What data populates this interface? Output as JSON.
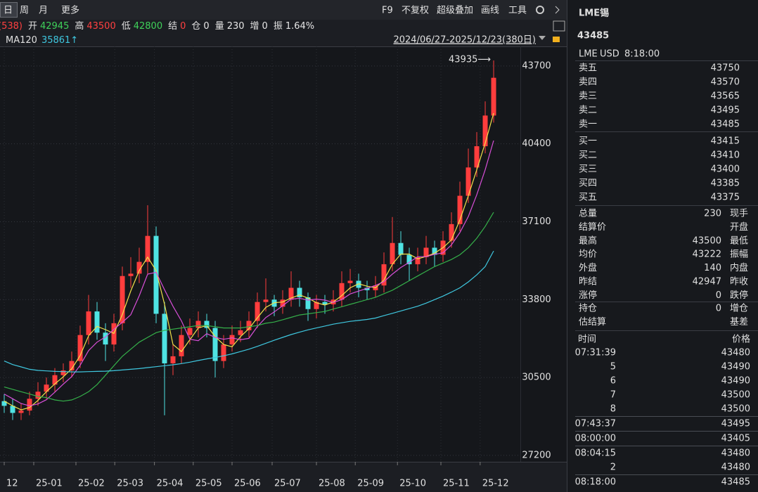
{
  "toolbar": {
    "periods": [
      "日",
      "周",
      "月",
      "更多"
    ],
    "tools": [
      "F9",
      "不复权",
      "超级叠加",
      "画线",
      "工具"
    ]
  },
  "quote_line": {
    "prefix": "(538)",
    "items": [
      {
        "label": "开",
        "value": "42945",
        "color": "#3fd15a"
      },
      {
        "label": "高",
        "value": "43500",
        "color": "#ff4040"
      },
      {
        "label": "低",
        "value": "42800",
        "color": "#3fd15a"
      },
      {
        "label": "结",
        "value": "0",
        "color": "#ff4040"
      },
      {
        "label": "仓",
        "value": "0",
        "color": "#e6e6e6"
      },
      {
        "label": "量",
        "value": "230",
        "color": "#e6e6e6"
      },
      {
        "label": "增",
        "value": "0",
        "color": "#e6e6e6"
      },
      {
        "label": "振",
        "value": "1.64%",
        "color": "#e6e6e6"
      }
    ]
  },
  "range": "2024/06/27-2025/12/23(380日)",
  "chart": {
    "type": "candlestick",
    "up_color": "#ff3d3d",
    "down_color": "#4fe3e3",
    "grid": true,
    "xlim": [
      -0.5,
      66.58
    ],
    "ylim": [
      26930,
      44530
    ],
    "yticks": [
      43700,
      40400,
      37100,
      33800,
      30500,
      27200
    ],
    "xticks": [
      {
        "value": 0,
        "label": "12"
      },
      {
        "value": 3.5,
        "label": "25-01"
      },
      {
        "value": 8.5,
        "label": "25-02"
      },
      {
        "value": 13.1,
        "label": "25-03"
      },
      {
        "value": 17.8,
        "label": "25-04"
      },
      {
        "value": 22.4,
        "label": "25-05"
      },
      {
        "value": 27,
        "label": "25-06"
      },
      {
        "value": 31.75,
        "label": "25-07"
      },
      {
        "value": 37,
        "label": "25-08"
      },
      {
        "value": 41.6,
        "label": "25-09"
      },
      {
        "value": 46.6,
        "label": "25-10"
      },
      {
        "value": 51.75,
        "label": "25-11"
      },
      {
        "value": 56.4,
        "label": "25-12"
      }
    ],
    "opens": [
      29500,
      29300,
      29000,
      29100,
      29600,
      29900,
      30200,
      30600,
      30800,
      31200,
      32300,
      33300,
      32400,
      31900,
      32800,
      34800,
      34900,
      35400,
      36500,
      33200,
      31100,
      31400,
      32300,
      32600,
      32900,
      32600,
      31200,
      31900,
      32300,
      32500,
      32900,
      33700,
      33800,
      33500,
      33800,
      34300,
      33900,
      33400,
      33700,
      33600,
      33800,
      34500,
      34600,
      34300,
      34200,
      34400,
      35300,
      36200,
      35700,
      35300,
      35600,
      36000,
      35700,
      36300,
      37000,
      38200,
      39400,
      40300,
      41600
    ],
    "highs": [
      29800,
      29600,
      29400,
      29900,
      30300,
      30500,
      30900,
      31100,
      31600,
      32700,
      34000,
      33700,
      32800,
      33200,
      35200,
      35600,
      36000,
      37800,
      36900,
      33700,
      31900,
      32700,
      33000,
      33300,
      33200,
      32900,
      32300,
      32700,
      32900,
      33300,
      34100,
      34700,
      34000,
      34200,
      35000,
      34600,
      34100,
      34000,
      34000,
      34200,
      35000,
      35100,
      34900,
      34600,
      34800,
      35800,
      37300,
      36700,
      36000,
      36000,
      36500,
      36300,
      36700,
      37500,
      38800,
      40200,
      40900,
      42200,
      43935
    ],
    "lows": [
      29000,
      28700,
      28700,
      28900,
      29300,
      29600,
      29900,
      30300,
      30500,
      30900,
      31900,
      32100,
      31200,
      31600,
      32500,
      34300,
      34500,
      34900,
      32800,
      28900,
      30600,
      31100,
      31900,
      32200,
      32200,
      30500,
      30900,
      31600,
      32000,
      32200,
      32600,
      33300,
      33100,
      33200,
      33500,
      33500,
      32900,
      33000,
      33200,
      33300,
      33500,
      34100,
      33900,
      33800,
      33900,
      34100,
      35000,
      35300,
      34600,
      35000,
      35300,
      35200,
      35400,
      36000,
      36700,
      37900,
      39000,
      40000,
      41300
    ],
    "closes": [
      29300,
      29000,
      29100,
      29600,
      29900,
      30200,
      30600,
      30800,
      31200,
      32300,
      33300,
      32400,
      31900,
      32800,
      34800,
      34900,
      35400,
      36500,
      33200,
      31100,
      31400,
      32300,
      32600,
      32900,
      32600,
      31200,
      31900,
      32300,
      32500,
      32900,
      33700,
      33800,
      33500,
      33800,
      34300,
      33900,
      33400,
      33700,
      33600,
      33800,
      34500,
      34600,
      34300,
      34200,
      34400,
      35300,
      36200,
      35700,
      35300,
      35600,
      36000,
      35700,
      36300,
      37000,
      38200,
      39400,
      40300,
      41600,
      43200
    ],
    "series": [
      {
        "color": "#f2e14a",
        "values": [
          29500,
          29300,
          29130,
          29230,
          29530,
          29900,
          30230,
          30530,
          30870,
          31430,
          32270,
          32670,
          32530,
          32370,
          33170,
          34170,
          35030,
          35600,
          35030,
          33600,
          31900,
          31600,
          32100,
          32600,
          32700,
          32230,
          31900,
          31800,
          32230,
          32570,
          33030,
          33470,
          33670,
          33700,
          33870,
          34000,
          33870,
          33670,
          33570,
          33700,
          33970,
          34300,
          34470,
          34370,
          34300,
          34630,
          35300,
          35730,
          35730,
          35530,
          35630,
          35770,
          36000,
          36330,
          37170,
          38200,
          39300,
          40430,
          41700
        ]
      },
      {
        "color": "#d84fd8",
        "values": [
          29800,
          29600,
          29400,
          29300,
          29380,
          29560,
          29880,
          30220,
          30540,
          31020,
          31640,
          32000,
          32220,
          32540,
          32840,
          33160,
          33960,
          34880,
          34960,
          34220,
          33520,
          32900,
          32120,
          32060,
          32360,
          32200,
          32120,
          32180,
          32100,
          32160,
          32660,
          33040,
          33280,
          33540,
          33820,
          33860,
          33780,
          33820,
          33780,
          33680,
          33800,
          34040,
          34160,
          34280,
          34400,
          34560,
          34880,
          35160,
          35380,
          35620,
          35620,
          35720,
          35780,
          36120,
          36640,
          37320,
          38240,
          39300,
          40540
        ]
      },
      {
        "color": "#35b04a",
        "values": [
          30100,
          30000,
          29900,
          29800,
          29700,
          29650,
          29550,
          29500,
          29550,
          29700,
          29900,
          30200,
          30600,
          31000,
          31400,
          31700,
          32000,
          32200,
          32400,
          32500,
          32550,
          32600,
          32650,
          32700,
          32700,
          32650,
          32600,
          32600,
          32600,
          32650,
          32700,
          32800,
          32850,
          32950,
          33050,
          33150,
          33200,
          33250,
          33300,
          33400,
          33500,
          33600,
          33700,
          33800,
          33900,
          34050,
          34200,
          34400,
          34600,
          34800,
          35000,
          35200,
          35350,
          35500,
          35700,
          36000,
          36400,
          36900,
          37500
        ]
      },
      {
        "name": "MA120",
        "value_label": "35861↑",
        "color": "#3fc8e0",
        "values": [
          31200,
          31050,
          30950,
          30850,
          30800,
          30780,
          30760,
          30750,
          30740,
          30740,
          30750,
          30760,
          30770,
          30790,
          30820,
          30850,
          30880,
          30920,
          30960,
          31000,
          31040,
          31090,
          31150,
          31220,
          31290,
          31350,
          31420,
          31500,
          31600,
          31700,
          31820,
          31950,
          32080,
          32200,
          32320,
          32420,
          32520,
          32600,
          32680,
          32760,
          32820,
          32880,
          32920,
          32960,
          33020,
          33120,
          33220,
          33320,
          33420,
          33520,
          33650,
          33800,
          33950,
          34120,
          34300,
          34550,
          34850,
          35200,
          35861
        ]
      }
    ],
    "annotation": "43935⟶"
  },
  "panel": {
    "title": "LME锡",
    "price": "43485",
    "meta": [
      "LME",
      "USD",
      "8:18:00"
    ],
    "asks": [
      {
        "label": "卖五",
        "price": "43750"
      },
      {
        "label": "卖四",
        "price": "43570"
      },
      {
        "label": "卖三",
        "price": "43565"
      },
      {
        "label": "卖二",
        "price": "43495"
      },
      {
        "label": "卖一",
        "price": "43485"
      }
    ],
    "bids": [
      {
        "label": "买一",
        "price": "43415"
      },
      {
        "label": "买二",
        "price": "43410"
      },
      {
        "label": "买三",
        "price": "43400"
      },
      {
        "label": "买四",
        "price": "43385"
      },
      {
        "label": "买五",
        "price": "43375"
      }
    ],
    "stats": [
      {
        "label": "总量",
        "value": "230",
        "color": "#e6e6e6",
        "label2": "现手"
      },
      {
        "label": "结算价",
        "label2": "开盘"
      },
      {
        "label": "最高",
        "value": "43500",
        "color": "#ff4040",
        "label2": "最低"
      },
      {
        "label": "均价",
        "value": "43222",
        "color": "#ff4040",
        "label2": "振幅"
      },
      {
        "label": "外盘",
        "value": "140",
        "color": "#ff4040",
        "label2": "内盘"
      },
      {
        "label": "昨结",
        "value": "42947",
        "color": "#e6e6e6",
        "label2": "昨收"
      },
      {
        "label": "涨停",
        "value": "0",
        "color": "#ff4040",
        "label2": "跌停"
      }
    ],
    "stats2": [
      {
        "label": "持仓",
        "value": "0",
        "color": "#e6e6e6",
        "label2": "增仓"
      },
      {
        "label": "估结算",
        "label2": "基差"
      }
    ],
    "trades_header": [
      "时间",
      "价格"
    ],
    "trades": [
      [
        {
          "time": "07:31:39",
          "price": "43480"
        },
        {
          "time": "5",
          "price": "43490"
        },
        {
          "time": "6",
          "price": "43490"
        },
        {
          "time": "7",
          "price": "43500"
        },
        {
          "time": "8",
          "price": "43500"
        }
      ],
      [
        {
          "time": "07:43:37",
          "price": "43495"
        }
      ],
      [
        {
          "time": "08:00:00",
          "price": "43405"
        }
      ],
      [
        {
          "time": "08:04:15",
          "price": "43480"
        },
        {
          "time": "2",
          "price": "43480"
        }
      ],
      [
        {
          "time": "08:18:00",
          "price": "43485"
        }
      ]
    ]
  }
}
